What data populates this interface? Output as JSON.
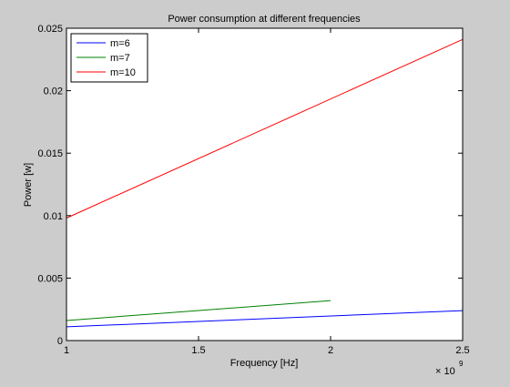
{
  "chart_data": {
    "type": "line",
    "title": "Power consumption at different frequencies",
    "xlabel": "Frequency [Hz]",
    "ylabel": "Power [w]",
    "x_exponent_label": "× 10",
    "x_exponent": "9",
    "xlim": [
      1,
      2.5
    ],
    "ylim": [
      0,
      0.025
    ],
    "x_ticks": [
      1,
      1.5,
      2,
      2.5
    ],
    "x_tick_labels": [
      "1",
      "1.5",
      "2",
      "2.5"
    ],
    "y_ticks": [
      0,
      0.005,
      0.01,
      0.015,
      0.02,
      0.025
    ],
    "y_tick_labels": [
      "0",
      "0.005",
      "0.01",
      "0.015",
      "0.02",
      "0.025"
    ],
    "grid": false,
    "legend_position": "top-left",
    "series": [
      {
        "name": "m=6",
        "color": "#0000ff",
        "x": [
          1,
          2.5
        ],
        "y": [
          0.0011,
          0.0024
        ]
      },
      {
        "name": "m=7",
        "color": "#008000",
        "x": [
          1,
          2
        ],
        "y": [
          0.0016,
          0.0032
        ]
      },
      {
        "name": "m=10",
        "color": "#ff0000",
        "x": [
          1,
          2.5
        ],
        "y": [
          0.0098,
          0.0241
        ]
      }
    ]
  }
}
